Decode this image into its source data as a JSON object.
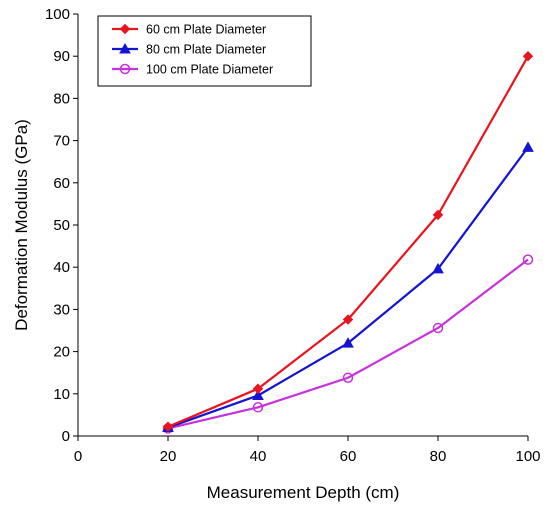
{
  "chart_data": {
    "type": "line",
    "title": "",
    "xlabel": "Measurement Depth (cm)",
    "ylabel": "Deformation Modulus (GPa)",
    "xlim": [
      0,
      100
    ],
    "ylim": [
      0,
      100
    ],
    "x_ticks": [
      0,
      20,
      40,
      60,
      80,
      100
    ],
    "y_ticks": [
      0,
      10,
      20,
      30,
      40,
      50,
      60,
      70,
      80,
      90,
      100
    ],
    "grid": false,
    "legend_position": "top-left",
    "series": [
      {
        "name": "60 cm Plate Diameter",
        "color": "#e8141e",
        "marker": "diamond",
        "x": [
          20,
          40,
          60,
          80,
          100
        ],
        "y": [
          2.2,
          11.2,
          27.6,
          52.4,
          90.0
        ]
      },
      {
        "name": "80 cm Plate Diameter",
        "color": "#1414d2",
        "marker": "triangle",
        "x": [
          20,
          40,
          60,
          80,
          100
        ],
        "y": [
          2.0,
          9.6,
          22.0,
          39.6,
          68.4
        ]
      },
      {
        "name": "100 cm Plate Diameter",
        "color": "#c832dc",
        "marker": "circle-open",
        "x": [
          20,
          40,
          60,
          80,
          100
        ],
        "y": [
          1.8,
          6.8,
          13.8,
          25.6,
          41.8
        ]
      }
    ]
  }
}
